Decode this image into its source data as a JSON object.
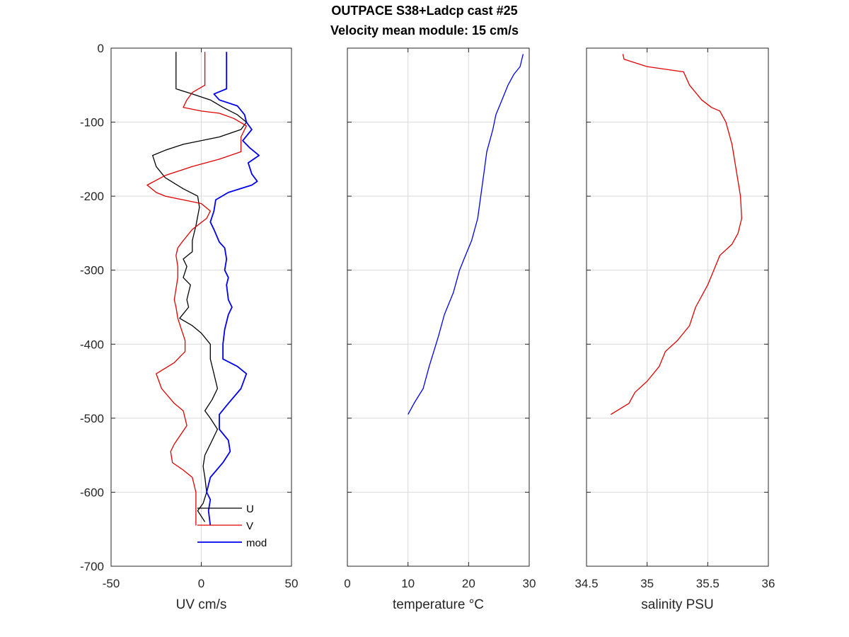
{
  "title": "OUTPACE S38+Ladcp cast #25",
  "subtitle": "Velocity mean module:  15 cm/s",
  "colors": {
    "U": "#000000",
    "V": "#e00000",
    "mod": "#0000ee",
    "temperature": "#0000ee",
    "salinity": "#e00000",
    "grid": "#d9d9d9"
  },
  "chart_data": [
    {
      "type": "line",
      "xlabel": "UV cm/s",
      "ylabel": "",
      "xlim": [
        -50,
        50
      ],
      "ylim": [
        -700,
        0
      ],
      "xticks": [
        -50,
        0,
        50
      ],
      "yticks": [
        0,
        -100,
        -200,
        -300,
        -400,
        -500,
        -600,
        -700
      ],
      "grid": true,
      "legend": "bottom-right",
      "series": [
        {
          "name": "U",
          "color": "#000000",
          "width": 1.3,
          "points": [
            [
              -14,
              -5
            ],
            [
              -14,
              -55
            ],
            [
              -5,
              -62
            ],
            [
              5,
              -70
            ],
            [
              12,
              -80
            ],
            [
              20,
              -90
            ],
            [
              25,
              -100
            ],
            [
              22,
              -110
            ],
            [
              10,
              -120
            ],
            [
              -10,
              -130
            ],
            [
              -20,
              -138
            ],
            [
              -27,
              -145
            ],
            [
              -25,
              -160
            ],
            [
              -20,
              -175
            ],
            [
              -10,
              -190
            ],
            [
              -2,
              -200
            ],
            [
              -1,
              -215
            ],
            [
              -3,
              -240
            ],
            [
              -5,
              -260
            ],
            [
              -5,
              -275
            ],
            [
              -10,
              -285
            ],
            [
              -8,
              -295
            ],
            [
              -10,
              -310
            ],
            [
              -6,
              -320
            ],
            [
              -8,
              -340
            ],
            [
              -7,
              -350
            ],
            [
              -12,
              -365
            ],
            [
              -5,
              -375
            ],
            [
              0,
              -385
            ],
            [
              5,
              -400
            ],
            [
              5,
              -420
            ],
            [
              7,
              -440
            ],
            [
              9,
              -460
            ],
            [
              6,
              -475
            ],
            [
              2,
              -490
            ],
            [
              5,
              -500
            ],
            [
              9,
              -515
            ],
            [
              5,
              -535
            ],
            [
              2,
              -550
            ],
            [
              1,
              -565
            ],
            [
              2,
              -580
            ],
            [
              3,
              -600
            ],
            [
              1,
              -615
            ],
            [
              -2,
              -625
            ],
            [
              2,
              -640
            ]
          ]
        },
        {
          "name": "V",
          "color": "#e00000",
          "width": 1.3,
          "points": [
            [
              2,
              -5
            ],
            [
              2,
              -50
            ],
            [
              -5,
              -60
            ],
            [
              -8,
              -70
            ],
            [
              -10,
              -80
            ],
            [
              0,
              -85
            ],
            [
              10,
              -88
            ],
            [
              18,
              -95
            ],
            [
              25,
              -105
            ],
            [
              22,
              -120
            ],
            [
              22,
              -140
            ],
            [
              10,
              -150
            ],
            [
              -5,
              -160
            ],
            [
              -20,
              -172
            ],
            [
              -30,
              -185
            ],
            [
              -25,
              -195
            ],
            [
              -20,
              -200
            ],
            [
              -10,
              -205
            ],
            [
              0,
              -210
            ],
            [
              5,
              -220
            ],
            [
              3,
              -230
            ],
            [
              -5,
              -245
            ],
            [
              -10,
              -260
            ],
            [
              -13,
              -270
            ],
            [
              -14,
              -280
            ],
            [
              -13,
              -295
            ],
            [
              -13,
              -310
            ],
            [
              -15,
              -340
            ],
            [
              -14,
              -350
            ],
            [
              -13,
              -365
            ],
            [
              -11,
              -380
            ],
            [
              -9,
              -395
            ],
            [
              -9,
              -410
            ],
            [
              -15,
              -425
            ],
            [
              -25,
              -440
            ],
            [
              -22,
              -460
            ],
            [
              -15,
              -480
            ],
            [
              -10,
              -490
            ],
            [
              -8,
              -510
            ],
            [
              -15,
              -535
            ],
            [
              -17,
              -545
            ],
            [
              -16,
              -560
            ],
            [
              -10,
              -570
            ],
            [
              -5,
              -580
            ],
            [
              -3,
              -600
            ],
            [
              -3,
              -620
            ],
            [
              -3,
              -630
            ],
            [
              -3,
              -645
            ]
          ]
        },
        {
          "name": "mod",
          "color": "#0000ee",
          "width": 1.8,
          "points": [
            [
              14,
              -5
            ],
            [
              14,
              -55
            ],
            [
              7,
              -62
            ],
            [
              10,
              -70
            ],
            [
              20,
              -78
            ],
            [
              24,
              -90
            ],
            [
              25,
              -100
            ],
            [
              28,
              -110
            ],
            [
              23,
              -125
            ],
            [
              27,
              -135
            ],
            [
              32,
              -145
            ],
            [
              26,
              -155
            ],
            [
              28,
              -170
            ],
            [
              31,
              -180
            ],
            [
              28,
              -185
            ],
            [
              15,
              -195
            ],
            [
              8,
              -205
            ],
            [
              7,
              -220
            ],
            [
              5,
              -235
            ],
            [
              7,
              -245
            ],
            [
              10,
              -262
            ],
            [
              13,
              -270
            ],
            [
              14,
              -285
            ],
            [
              13,
              -300
            ],
            [
              15,
              -310
            ],
            [
              14,
              -320
            ],
            [
              15,
              -340
            ],
            [
              17,
              -350
            ],
            [
              15,
              -360
            ],
            [
              13,
              -380
            ],
            [
              12,
              -400
            ],
            [
              12,
              -420
            ],
            [
              20,
              -430
            ],
            [
              25,
              -440
            ],
            [
              22,
              -460
            ],
            [
              15,
              -480
            ],
            [
              10,
              -495
            ],
            [
              10,
              -515
            ],
            [
              15,
              -530
            ],
            [
              16,
              -545
            ],
            [
              12,
              -560
            ],
            [
              5,
              -580
            ],
            [
              3,
              -600
            ],
            [
              5,
              -610
            ],
            [
              4,
              -625
            ],
            [
              5,
              -645
            ]
          ]
        }
      ]
    },
    {
      "type": "line",
      "xlabel": "temperature °C",
      "ylabel": "",
      "xlim": [
        0,
        30
      ],
      "ylim": [
        -700,
        0
      ],
      "xticks": [
        0,
        10,
        20,
        30
      ],
      "yticks": [
        0,
        -100,
        -200,
        -300,
        -400,
        -500,
        -600,
        -700
      ],
      "grid": true,
      "series": [
        {
          "name": "",
          "color": "#0000ee",
          "width": 1.3,
          "points": [
            [
              29,
              -8
            ],
            [
              28.5,
              -25
            ],
            [
              27.5,
              -35
            ],
            [
              26.5,
              -50
            ],
            [
              25.5,
              -70
            ],
            [
              24.5,
              -90
            ],
            [
              24,
              -110
            ],
            [
              23,
              -140
            ],
            [
              22.5,
              -170
            ],
            [
              22,
              -200
            ],
            [
              21.5,
              -230
            ],
            [
              20.5,
              -260
            ],
            [
              19.5,
              -280
            ],
            [
              18.5,
              -300
            ],
            [
              17.5,
              -330
            ],
            [
              16,
              -360
            ],
            [
              15,
              -390
            ],
            [
              13.5,
              -430
            ],
            [
              12.5,
              -460
            ],
            [
              11,
              -480
            ],
            [
              10,
              -495
            ]
          ]
        }
      ]
    },
    {
      "type": "line",
      "xlabel": "salinity PSU",
      "ylabel": "",
      "xlim": [
        34.5,
        36
      ],
      "ylim": [
        -700,
        0
      ],
      "xticks": [
        34.5,
        35,
        35.5,
        36
      ],
      "grid": true,
      "series": [
        {
          "name": "",
          "color": "#e00000",
          "width": 1.3,
          "points": [
            [
              34.8,
              -8
            ],
            [
              34.81,
              -15
            ],
            [
              35.0,
              -25
            ],
            [
              35.3,
              -32
            ],
            [
              35.35,
              -50
            ],
            [
              35.45,
              -70
            ],
            [
              35.53,
              -80
            ],
            [
              35.6,
              -85
            ],
            [
              35.65,
              -100
            ],
            [
              35.7,
              -130
            ],
            [
              35.75,
              -180
            ],
            [
              35.77,
              -200
            ],
            [
              35.78,
              -230
            ],
            [
              35.75,
              -250
            ],
            [
              35.7,
              -265
            ],
            [
              35.6,
              -280
            ],
            [
              35.55,
              -300
            ],
            [
              35.5,
              -320
            ],
            [
              35.4,
              -350
            ],
            [
              35.35,
              -375
            ],
            [
              35.25,
              -395
            ],
            [
              35.15,
              -410
            ],
            [
              35.1,
              -430
            ],
            [
              35.0,
              -450
            ],
            [
              34.9,
              -465
            ],
            [
              34.85,
              -480
            ],
            [
              34.7,
              -495
            ]
          ]
        }
      ]
    }
  ]
}
